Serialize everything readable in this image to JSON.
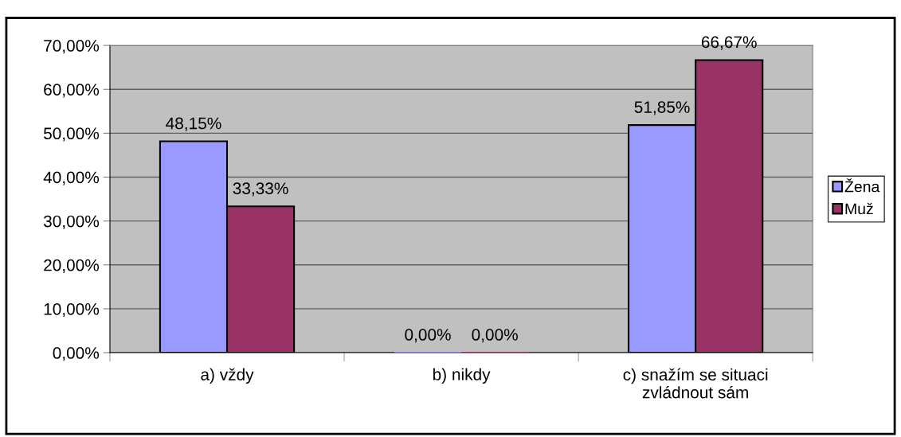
{
  "chart_data": {
    "type": "bar",
    "categories": [
      "a) vždy",
      "b) nikdy",
      "c) snažím se situaci\nzvládnout sám"
    ],
    "series": [
      {
        "name": "Žena",
        "color": "#9999ff",
        "values": [
          48.15,
          0,
          51.85
        ],
        "value_labels": [
          "48,15%",
          "0,00%",
          "51,85%"
        ]
      },
      {
        "name": "Muž",
        "color": "#993366",
        "values": [
          33.33,
          0,
          66.67
        ],
        "value_labels": [
          "33,33%",
          "0,00%",
          "66,67%"
        ]
      }
    ],
    "ylim": [
      0,
      70
    ],
    "yticks": [
      {
        "value": 0,
        "label": "0,00%"
      },
      {
        "value": 10,
        "label": "10,00%"
      },
      {
        "value": 20,
        "label": "20,00%"
      },
      {
        "value": 30,
        "label": "30,00%"
      },
      {
        "value": 40,
        "label": "40,00%"
      },
      {
        "value": 50,
        "label": "50,00%"
      },
      {
        "value": 60,
        "label": "60,00%"
      },
      {
        "value": 70,
        "label": "70,00%"
      }
    ],
    "grid": "y",
    "legend": "right"
  }
}
